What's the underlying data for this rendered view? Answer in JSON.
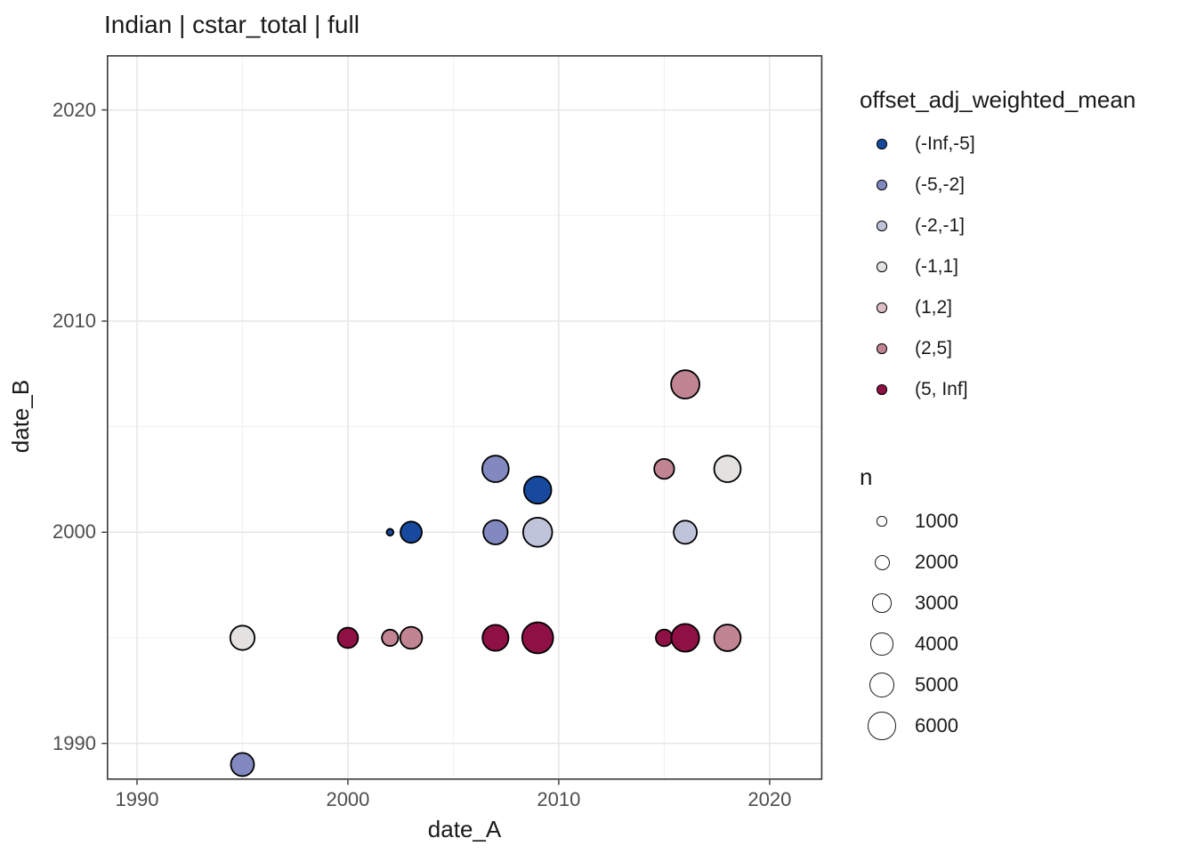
{
  "title": "Indian | cstar_total | full",
  "chart_data": {
    "type": "scatter",
    "title": "Indian | cstar_total | full",
    "xlabel": "date_A",
    "ylabel": "date_B",
    "xlim": [
      1988.6,
      2022.47
    ],
    "ylim": [
      1988.31,
      2022.56
    ],
    "x_ticks": [
      1990,
      2000,
      2010,
      2020
    ],
    "y_ticks": [
      1990,
      2000,
      2010,
      2020
    ],
    "x_minor_ticks": [
      1995,
      2005,
      2015
    ],
    "y_minor_ticks": [
      1995,
      2005,
      2015
    ],
    "grid": true,
    "legend_position": "right",
    "color_legend": {
      "title": "offset_adj_weighted_mean",
      "entries": [
        {
          "label": "(-Inf,-5]",
          "color": "#174a9f"
        },
        {
          "label": "(-5,-2]",
          "color": "#8289c1"
        },
        {
          "label": "(-2,-1]",
          "color": "#c0c4da"
        },
        {
          "label": "(-1,1]",
          "color": "#e3e2e1"
        },
        {
          "label": "(1,2]",
          "color": "#dcbec5"
        },
        {
          "label": "(2,5]",
          "color": "#c08492"
        },
        {
          "label": "(5, Inf]",
          "color": "#8f1045"
        }
      ]
    },
    "size_legend": {
      "title": "n",
      "entries": [
        1000,
        2000,
        3000,
        4000,
        5000,
        6000
      ]
    },
    "points": [
      {
        "x": 1995,
        "y": 1989,
        "bin": "(-5,-2]",
        "n": 4500
      },
      {
        "x": 1995,
        "y": 1995,
        "bin": "(-1,1]",
        "n": 4900
      },
      {
        "x": 2000,
        "y": 1995,
        "bin": "(5, Inf]",
        "n": 3600
      },
      {
        "x": 2002,
        "y": 2000,
        "bin": "(-Inf,-5]",
        "n": 700
      },
      {
        "x": 2002,
        "y": 1995,
        "bin": "(2,5]",
        "n": 2500
      },
      {
        "x": 2003,
        "y": 2000,
        "bin": "(-Inf,-5]",
        "n": 3900
      },
      {
        "x": 2003,
        "y": 1995,
        "bin": "(2,5]",
        "n": 4100
      },
      {
        "x": 2007,
        "y": 2003,
        "bin": "(-5,-2]",
        "n": 5700
      },
      {
        "x": 2007,
        "y": 2000,
        "bin": "(-5,-2]",
        "n": 4900
      },
      {
        "x": 2007,
        "y": 1995,
        "bin": "(5, Inf]",
        "n": 5500
      },
      {
        "x": 2009,
        "y": 2002,
        "bin": "(-Inf,-5]",
        "n": 6000
      },
      {
        "x": 2009,
        "y": 2000,
        "bin": "(-2,-1]",
        "n": 6700
      },
      {
        "x": 2009,
        "y": 1995,
        "bin": "(5, Inf]",
        "n": 7500
      },
      {
        "x": 2015,
        "y": 2003,
        "bin": "(2,5]",
        "n": 3500
      },
      {
        "x": 2015,
        "y": 1995,
        "bin": "(5, Inf]",
        "n": 2600
      },
      {
        "x": 2016,
        "y": 2007,
        "bin": "(2,5]",
        "n": 6400
      },
      {
        "x": 2016,
        "y": 2000,
        "bin": "(-2,-1]",
        "n": 4500
      },
      {
        "x": 2016,
        "y": 1995,
        "bin": "(5, Inf]",
        "n": 6200
      },
      {
        "x": 2018,
        "y": 2003,
        "bin": "(-1,1]",
        "n": 5700
      },
      {
        "x": 2018,
        "y": 1995,
        "bin": "(2,5]",
        "n": 5700
      }
    ]
  },
  "style": {
    "background": "#ffffff",
    "grid_major_color": "#e6e6e6",
    "grid_minor_color": "#f0f0f0",
    "panel_border_color": "#383838",
    "tick_color": "#333333",
    "tick_label_color": "#4d4d4d",
    "text_color": "#1a1a1a",
    "point_stroke_color": "#000000"
  }
}
